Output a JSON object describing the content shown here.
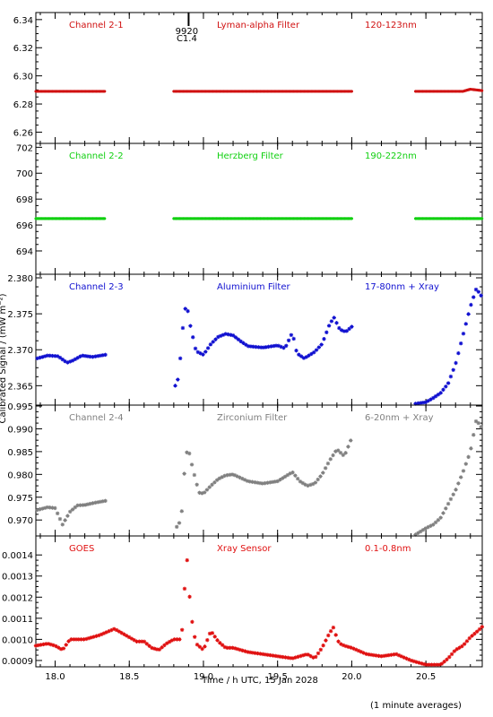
{
  "footer_note": "(1 minute averages)",
  "chart_data": {
    "type": "scatter",
    "xlabel": "Time / h UTC, 15 Jan 2028",
    "ylabel": "Calibrated Signal / (mW m⁻²)",
    "xlim": [
      17.87,
      20.88
    ],
    "x_ticks": [
      "18.0",
      "18.5",
      "19.0",
      "19.5",
      "20.0",
      "20.5"
    ],
    "x_tick_values": [
      18.0,
      18.5,
      19.0,
      19.5,
      20.0,
      20.5
    ],
    "marker": "asterisk",
    "flare_annotation": {
      "x": 18.9,
      "label": "9920",
      "class": "C1.4"
    },
    "panels": [
      {
        "name": "Channel 2-1",
        "filter": "Lyman-alpha Filter",
        "band": "120-123nm",
        "color": "#d01010",
        "ylim": [
          6.252,
          6.345
        ],
        "y_ticks": [
          "6.34",
          "6.32",
          "6.30",
          "6.28",
          "6.26"
        ],
        "y_tick_values": [
          6.34,
          6.32,
          6.3,
          6.28,
          6.26
        ],
        "style": "flat",
        "segments": [
          {
            "x": [
              17.87,
              18.34
            ],
            "y": [
              6.289,
              6.289
            ]
          },
          {
            "x": [
              18.8,
              20.0
            ],
            "y": [
              6.289,
              6.289
            ]
          },
          {
            "x": [
              20.43,
              20.75,
              20.8,
              20.88
            ],
            "y": [
              6.289,
              6.289,
              6.2905,
              6.2895
            ]
          }
        ]
      },
      {
        "name": "Channel 2-2",
        "filter": "Herzberg Filter",
        "band": "190-222nm",
        "color": "#10d010",
        "ylim": [
          692.2,
          702.3
        ],
        "y_ticks": [
          "702",
          "700",
          "698",
          "696",
          "694"
        ],
        "y_tick_values": [
          702,
          700,
          698,
          696,
          694
        ],
        "style": "flat",
        "segments": [
          {
            "x": [
              17.87,
              18.34
            ],
            "y": [
              696.5,
              696.5
            ]
          },
          {
            "x": [
              18.8,
              20.0
            ],
            "y": [
              696.5,
              696.5
            ]
          },
          {
            "x": [
              20.43,
              20.88
            ],
            "y": [
              696.5,
              696.5
            ]
          }
        ]
      },
      {
        "name": "Channel 2-3",
        "filter": "Aluminium Filter",
        "band": "17-80nm + Xray",
        "color": "#1010d0",
        "ylim": [
          2.3623,
          2.3805
        ],
        "y_ticks": [
          "2.380",
          "2.375",
          "2.370",
          "2.365"
        ],
        "y_tick_values": [
          2.38,
          2.375,
          2.37,
          2.365
        ],
        "style": "scatter",
        "segments": [
          {
            "x": [
              17.88,
              17.95,
              18.02,
              18.08,
              18.12,
              18.18,
              18.25,
              18.34
            ],
            "y": [
              2.3688,
              2.3692,
              2.3691,
              2.3682,
              2.3685,
              2.3692,
              2.369,
              2.3693
            ]
          },
          {
            "x": [
              18.81,
              18.83,
              18.85,
              18.87,
              18.89,
              18.91,
              18.95,
              19.0,
              19.05,
              19.1,
              19.15,
              19.2,
              19.25,
              19.3,
              19.4,
              19.5,
              19.55,
              19.6,
              19.63,
              19.68,
              19.75,
              19.8,
              19.85,
              19.88,
              19.92,
              19.96,
              20.0
            ],
            "y": [
              2.365,
              2.366,
              2.37,
              2.3755,
              2.376,
              2.3735,
              2.3698,
              2.3693,
              2.3708,
              2.3718,
              2.3722,
              2.372,
              2.3712,
              2.3705,
              2.3703,
              2.3706,
              2.3702,
              2.3724,
              2.3695,
              2.3688,
              2.3697,
              2.3708,
              2.3735,
              2.3745,
              2.3728,
              2.3725,
              2.3732
            ]
          },
          {
            "x": [
              20.43,
              20.5,
              20.55,
              20.6,
              20.65,
              20.7,
              20.75,
              20.8,
              20.84,
              20.88
            ],
            "y": [
              2.3625,
              2.3627,
              2.3633,
              2.364,
              2.3653,
              2.368,
              2.372,
              2.376,
              2.3785,
              2.3773
            ]
          }
        ]
      },
      {
        "name": "Channel 2-4",
        "filter": "Zirconium Filter",
        "band": "6-20nm + Xray",
        "color": "#808080",
        "ylim": [
          0.9665,
          0.9952
        ],
        "y_ticks": [
          "0.995",
          "0.990",
          "0.985",
          "0.980",
          "0.975",
          "0.970"
        ],
        "y_tick_values": [
          0.995,
          0.99,
          0.985,
          0.98,
          0.975,
          0.97
        ],
        "style": "scatter",
        "segments": [
          {
            "x": [
              17.88,
              17.95,
              18.0,
              18.05,
              18.1,
              18.15,
              18.2,
              18.27,
              18.34
            ],
            "y": [
              0.9722,
              0.9728,
              0.9726,
              0.969,
              0.9718,
              0.9732,
              0.9733,
              0.9738,
              0.9742
            ]
          },
          {
            "x": [
              18.82,
              18.85,
              18.88,
              18.9,
              18.93,
              18.97,
              19.0,
              19.05,
              19.1,
              19.15,
              19.2,
              19.3,
              19.4,
              19.5,
              19.55,
              19.6,
              19.65,
              19.7,
              19.75,
              19.8,
              19.85,
              19.9,
              19.95,
              20.0
            ],
            "y": [
              0.9685,
              0.97,
              0.9845,
              0.9853,
              0.981,
              0.976,
              0.9758,
              0.9775,
              0.979,
              0.9798,
              0.98,
              0.9785,
              0.978,
              0.9785,
              0.9795,
              0.9805,
              0.9785,
              0.9775,
              0.978,
              0.98,
              0.983,
              0.9855,
              0.984,
              0.988
            ]
          },
          {
            "x": [
              20.43,
              20.5,
              20.55,
              20.6,
              20.65,
              20.7,
              20.75,
              20.8,
              20.84,
              20.88
            ],
            "y": [
              0.9668,
              0.9682,
              0.969,
              0.9705,
              0.9735,
              0.9765,
              0.9805,
              0.985,
              0.992,
              0.99
            ]
          }
        ]
      },
      {
        "name": "GOES",
        "filter": "Xray Sensor",
        "band": "0.1-0.8nm",
        "color": "#e01010",
        "ylim": [
          0.00087,
          0.00149
        ],
        "y_ticks": [
          "0.0014",
          "0.0013",
          "0.0012",
          "0.0011",
          "0.0010",
          "0.0009"
        ],
        "y_tick_values": [
          0.0014,
          0.0013,
          0.0012,
          0.0011,
          0.001,
          0.0009
        ],
        "style": "scatter",
        "segments": [
          {
            "x": [
              17.87,
              17.95,
              18.0,
              18.05,
              18.1,
              18.2,
              18.3,
              18.4,
              18.45,
              18.5,
              18.55,
              18.6,
              18.65,
              18.7,
              18.75,
              18.8,
              18.85,
              18.87,
              18.88,
              18.9,
              18.91,
              18.93,
              18.95,
              19.0,
              19.05,
              19.1,
              19.15,
              19.2,
              19.3,
              19.4,
              19.5,
              19.6,
              19.7,
              19.75,
              19.8,
              19.85,
              19.88,
              19.9,
              19.92,
              19.95,
              20.0,
              20.1,
              20.2,
              20.3,
              20.4,
              20.5,
              20.55,
              20.6,
              20.65,
              20.7,
              20.75,
              20.8,
              20.85,
              20.88
            ],
            "y": [
              0.00097,
              0.00098,
              0.00097,
              0.00095,
              0.001,
              0.001,
              0.00102,
              0.00105,
              0.00103,
              0.00101,
              0.00099,
              0.00099,
              0.00096,
              0.00095,
              0.00098,
              0.001,
              0.001,
              0.00115,
              0.00145,
              0.0013,
              0.00116,
              0.00105,
              0.00098,
              0.00095,
              0.00104,
              0.00099,
              0.00096,
              0.00096,
              0.00094,
              0.00093,
              0.00092,
              0.00091,
              0.00093,
              0.00091,
              0.00096,
              0.00103,
              0.00106,
              0.001,
              0.00098,
              0.00097,
              0.00096,
              0.00093,
              0.00092,
              0.00093,
              0.0009,
              0.00088,
              0.00088,
              0.00088,
              0.00091,
              0.00095,
              0.00097,
              0.00101,
              0.00104,
              0.00106
            ]
          }
        ]
      }
    ]
  }
}
